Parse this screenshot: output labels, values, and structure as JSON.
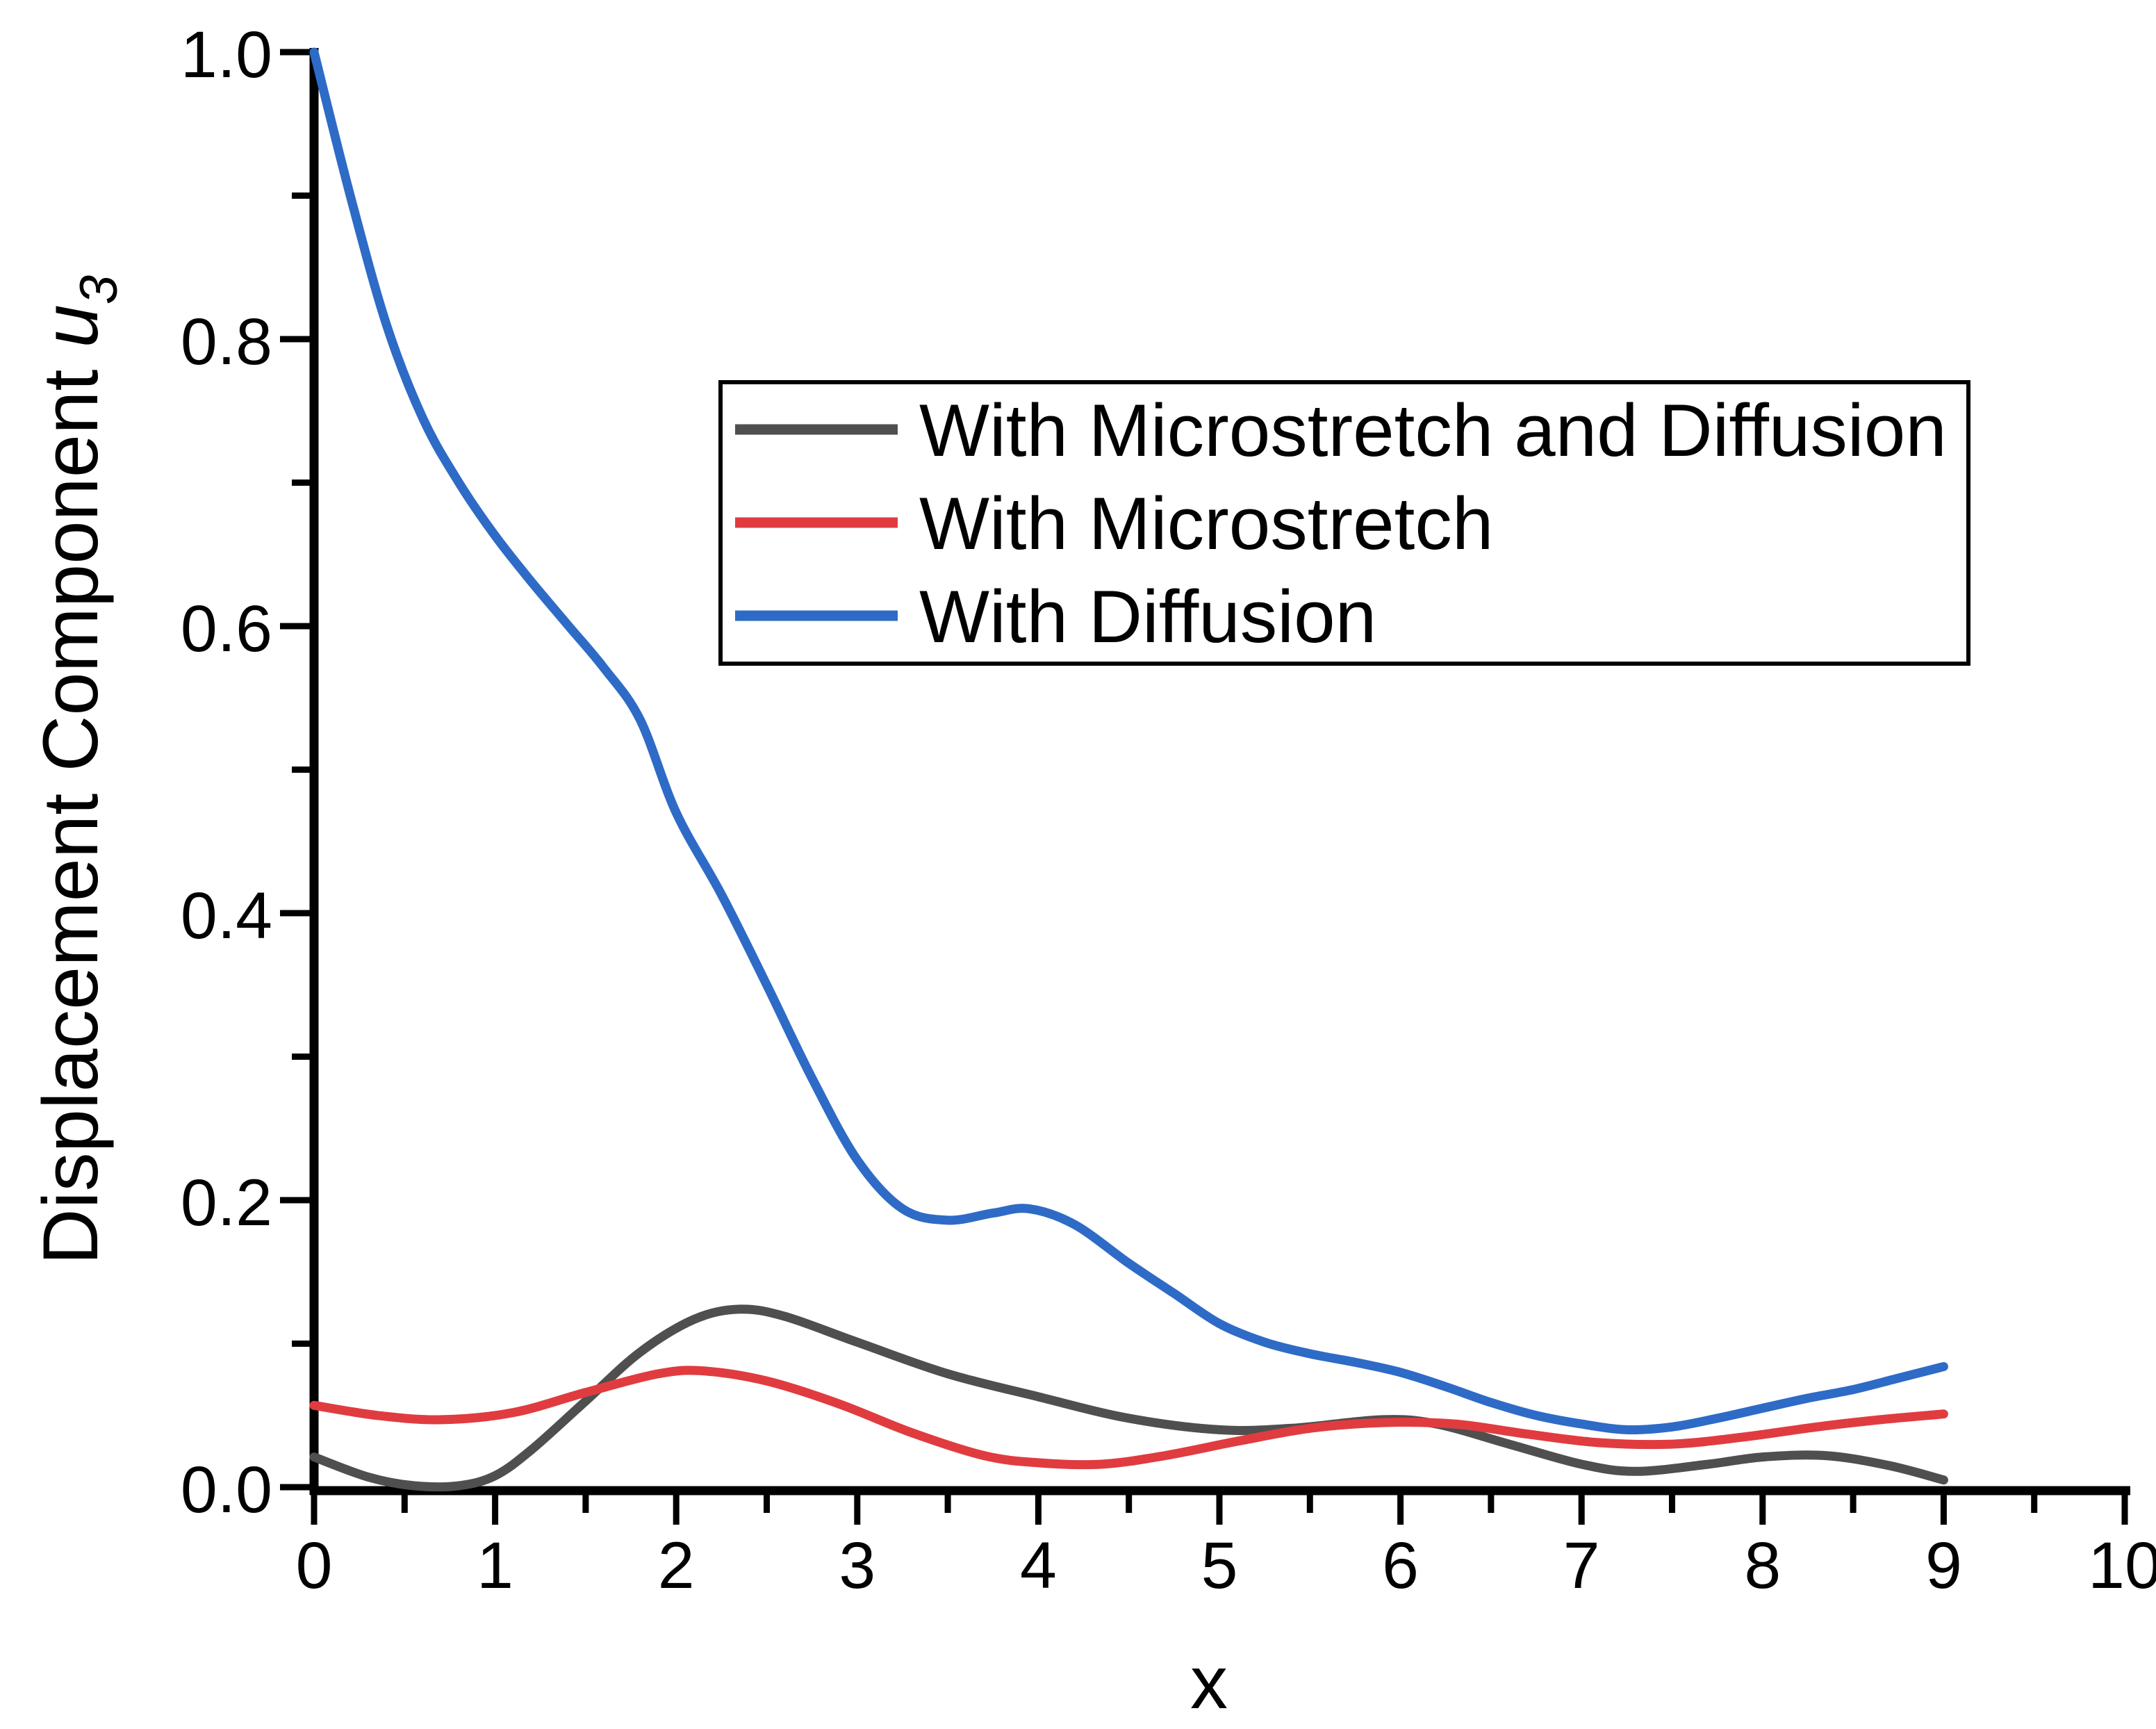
{
  "figure": {
    "background": "#ffffff",
    "axis_color": "#000000",
    "description": "Line chart comparing displacement component u3 versus x for three model variants"
  },
  "chart_data": {
    "type": "line",
    "title": "",
    "xlabel": "x",
    "ylabel": "Displacement Component u3",
    "ylabel_parts": {
      "prefix": "Displacement Component ",
      "symbol": "u",
      "subscript": "3"
    },
    "xlim": [
      0,
      10
    ],
    "ylim": [
      0.0,
      1.0
    ],
    "grid": "off",
    "legend_position": "upper-left-inside",
    "x_tick_values": [
      0,
      1,
      2,
      3,
      4,
      5,
      6,
      7,
      8,
      9,
      10
    ],
    "x_tick_labels": [
      "0",
      "1",
      "2",
      "3",
      "4",
      "5",
      "6",
      "7",
      "8",
      "9",
      "10"
    ],
    "x_minor_ticks": [
      0.5,
      1.5,
      2.5,
      3.5,
      4.5,
      5.5,
      6.5,
      7.5,
      8.5,
      9.5
    ],
    "y_tick_values": [
      0.0,
      0.2,
      0.4,
      0.6,
      0.8,
      1.0
    ],
    "y_tick_labels": [
      "0.0",
      "0.2",
      "0.4",
      "0.6",
      "0.8",
      "1.0"
    ],
    "y_minor_ticks": [
      0.1,
      0.3,
      0.5,
      0.7,
      0.9
    ],
    "series": [
      {
        "name": "With Microstretch and Diffusion",
        "color": "#4f4f4f",
        "points": [
          [
            0,
            0.021
          ],
          [
            0.3,
            0.007
          ],
          [
            0.55,
            0.001
          ],
          [
            0.8,
            0.001
          ],
          [
            1.0,
            0.008
          ],
          [
            1.2,
            0.026
          ],
          [
            1.5,
            0.06
          ],
          [
            1.8,
            0.094
          ],
          [
            2.1,
            0.117
          ],
          [
            2.35,
            0.124
          ],
          [
            2.6,
            0.119
          ],
          [
            3.0,
            0.101
          ],
          [
            3.5,
            0.079
          ],
          [
            4.0,
            0.063
          ],
          [
            4.5,
            0.048
          ],
          [
            5.0,
            0.04
          ],
          [
            5.4,
            0.041
          ],
          [
            5.9,
            0.047
          ],
          [
            6.2,
            0.044
          ],
          [
            6.6,
            0.03
          ],
          [
            7.0,
            0.016
          ],
          [
            7.3,
            0.011
          ],
          [
            7.7,
            0.016
          ],
          [
            8.0,
            0.021
          ],
          [
            8.35,
            0.022
          ],
          [
            8.7,
            0.015
          ],
          [
            9.0,
            0.005
          ]
        ]
      },
      {
        "name": "With Microstretch",
        "color": "#e03c40",
        "points": [
          [
            0,
            0.057
          ],
          [
            0.35,
            0.05
          ],
          [
            0.7,
            0.047
          ],
          [
            1.1,
            0.052
          ],
          [
            1.5,
            0.066
          ],
          [
            1.9,
            0.079
          ],
          [
            2.15,
            0.081
          ],
          [
            2.5,
            0.074
          ],
          [
            2.9,
            0.058
          ],
          [
            3.3,
            0.038
          ],
          [
            3.7,
            0.022
          ],
          [
            4.0,
            0.017
          ],
          [
            4.35,
            0.016
          ],
          [
            4.7,
            0.022
          ],
          [
            5.1,
            0.032
          ],
          [
            5.5,
            0.041
          ],
          [
            5.9,
            0.045
          ],
          [
            6.3,
            0.044
          ],
          [
            6.7,
            0.037
          ],
          [
            7.1,
            0.031
          ],
          [
            7.5,
            0.03
          ],
          [
            7.9,
            0.035
          ],
          [
            8.3,
            0.042
          ],
          [
            8.65,
            0.047
          ],
          [
            9.0,
            0.051
          ]
        ]
      },
      {
        "name": "With Diffusion",
        "color": "#2e6bc6",
        "points": [
          [
            0,
            1.0
          ],
          [
            0.2,
            0.9
          ],
          [
            0.4,
            0.81
          ],
          [
            0.6,
            0.745
          ],
          [
            0.8,
            0.7
          ],
          [
            1.0,
            0.663
          ],
          [
            1.2,
            0.631
          ],
          [
            1.4,
            0.601
          ],
          [
            1.6,
            0.571
          ],
          [
            1.8,
            0.535
          ],
          [
            2.0,
            0.47
          ],
          [
            2.25,
            0.413
          ],
          [
            2.5,
            0.35
          ],
          [
            2.75,
            0.285
          ],
          [
            3.0,
            0.228
          ],
          [
            3.25,
            0.194
          ],
          [
            3.5,
            0.186
          ],
          [
            3.75,
            0.191
          ],
          [
            3.95,
            0.194
          ],
          [
            4.2,
            0.183
          ],
          [
            4.5,
            0.156
          ],
          [
            4.75,
            0.135
          ],
          [
            5.0,
            0.114
          ],
          [
            5.25,
            0.101
          ],
          [
            5.5,
            0.093
          ],
          [
            5.75,
            0.087
          ],
          [
            6.0,
            0.08
          ],
          [
            6.25,
            0.07
          ],
          [
            6.5,
            0.059
          ],
          [
            6.75,
            0.05
          ],
          [
            7.0,
            0.044
          ],
          [
            7.25,
            0.04
          ],
          [
            7.5,
            0.042
          ],
          [
            7.75,
            0.048
          ],
          [
            8.0,
            0.055
          ],
          [
            8.25,
            0.062
          ],
          [
            8.5,
            0.068
          ],
          [
            8.75,
            0.076
          ],
          [
            9.0,
            0.084
          ]
        ]
      }
    ]
  }
}
